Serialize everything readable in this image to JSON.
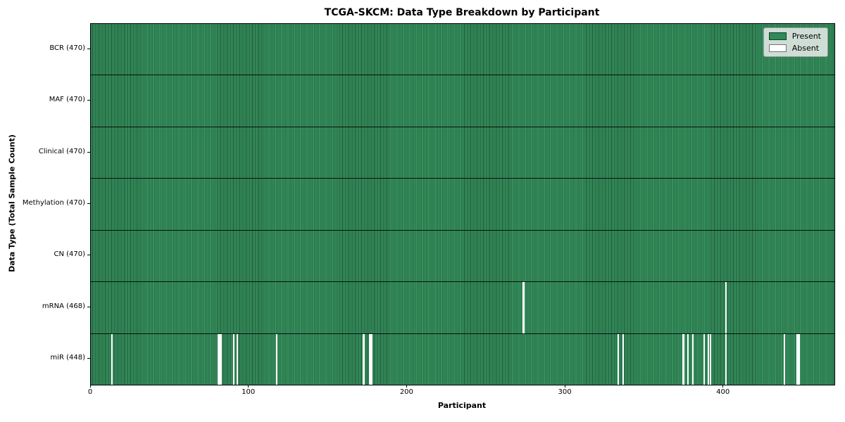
{
  "figure": {
    "title": "TCGA-SKCM: Data Type Breakdown by Participant",
    "xlabel": "Participant",
    "ylabel": "Data Type (Total Sample Count)"
  },
  "legend": {
    "items": [
      {
        "label": "Present",
        "color": "#2e8b57"
      },
      {
        "label": "Absent",
        "color": "#ffffff"
      }
    ]
  },
  "chart_data": {
    "type": "heatmap",
    "title": "TCGA-SKCM: Data Type Breakdown by Participant",
    "xlabel": "Participant",
    "ylabel": "Data Type (Total Sample Count)",
    "legend_entries": [
      "Present",
      "Absent"
    ],
    "legend_position": "upper right",
    "grid": false,
    "n_participants": 470,
    "xlim": [
      0,
      470
    ],
    "x_ticks": [
      0,
      100,
      200,
      300,
      400
    ],
    "colors": {
      "present": "#2e8b57",
      "absent": "#ffffff",
      "cell_edge": "rgba(0,0,0,0.38)",
      "row_separator": "#000000"
    },
    "rows": [
      {
        "name": "BCR",
        "label": "BCR (470)",
        "total": 470,
        "absent_participants": []
      },
      {
        "name": "MAF",
        "label": "MAF (470)",
        "total": 470,
        "absent_participants": []
      },
      {
        "name": "Clinical",
        "label": "Clinical (470)",
        "total": 470,
        "absent_participants": []
      },
      {
        "name": "Methylation",
        "label": "Methylation (470)",
        "total": 470,
        "absent_participants": []
      },
      {
        "name": "CN",
        "label": "CN (470)",
        "total": 470,
        "absent_participants": []
      },
      {
        "name": "mRNA",
        "label": "mRNA (468)",
        "total": 468,
        "absent_participants": [
          273,
          401
        ]
      },
      {
        "name": "miR",
        "label": "miR (448)",
        "total": 448,
        "absent_participants": [
          13,
          80,
          81,
          82,
          90,
          92,
          117,
          172,
          176,
          177,
          333,
          336,
          374,
          377,
          380,
          387,
          390,
          391,
          401,
          438,
          446,
          447
        ]
      }
    ]
  }
}
